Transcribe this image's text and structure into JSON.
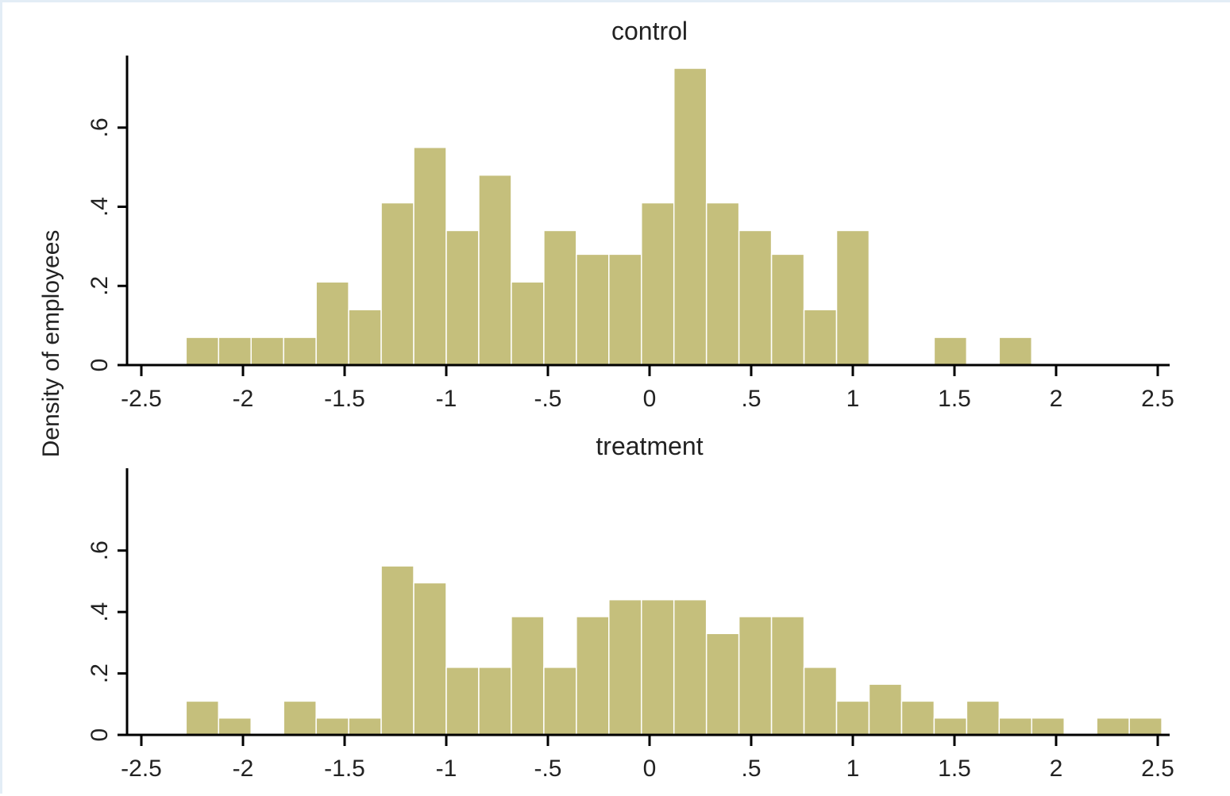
{
  "chart_data": [
    {
      "type": "bar",
      "title": "control",
      "ylabel": "Density of employees",
      "xlim": [
        -2.5,
        2.5
      ],
      "ylim": [
        0,
        0.75
      ],
      "xticks": [
        -2.5,
        -2,
        -1.5,
        -1,
        -0.5,
        0,
        0.5,
        1,
        1.5,
        2,
        2.5
      ],
      "xtick_labels": [
        "-2.5",
        "-2",
        "-1.5",
        "-1",
        "-.5",
        "0",
        ".5",
        "1",
        "1.5",
        "2",
        "2.5"
      ],
      "yticks": [
        0,
        0.2,
        0.4,
        0.6
      ],
      "ytick_labels": [
        "0",
        ".2",
        ".4",
        ".6"
      ],
      "bar_color": "#c5bf7c",
      "bar_edge_color": "#ffffff",
      "bins": [
        {
          "x0": -2.28,
          "x1": -2.12,
          "y": 0.07
        },
        {
          "x0": -2.12,
          "x1": -1.96,
          "y": 0.07
        },
        {
          "x0": -1.96,
          "x1": -1.8,
          "y": 0.07
        },
        {
          "x0": -1.8,
          "x1": -1.64,
          "y": 0.07
        },
        {
          "x0": -1.64,
          "x1": -1.48,
          "y": 0.21
        },
        {
          "x0": -1.48,
          "x1": -1.32,
          "y": 0.14
        },
        {
          "x0": -1.32,
          "x1": -1.16,
          "y": 0.41
        },
        {
          "x0": -1.16,
          "x1": -1.0,
          "y": 0.55
        },
        {
          "x0": -1.0,
          "x1": -0.84,
          "y": 0.34
        },
        {
          "x0": -0.84,
          "x1": -0.68,
          "y": 0.48
        },
        {
          "x0": -0.68,
          "x1": -0.52,
          "y": 0.21
        },
        {
          "x0": -0.52,
          "x1": -0.36,
          "y": 0.34
        },
        {
          "x0": -0.36,
          "x1": -0.2,
          "y": 0.28
        },
        {
          "x0": -0.2,
          "x1": -0.04,
          "y": 0.28
        },
        {
          "x0": -0.04,
          "x1": 0.12,
          "y": 0.41
        },
        {
          "x0": 0.12,
          "x1": 0.28,
          "y": 0.75
        },
        {
          "x0": 0.28,
          "x1": 0.44,
          "y": 0.41
        },
        {
          "x0": 0.44,
          "x1": 0.6,
          "y": 0.34
        },
        {
          "x0": 0.6,
          "x1": 0.76,
          "y": 0.28
        },
        {
          "x0": 0.76,
          "x1": 0.92,
          "y": 0.14
        },
        {
          "x0": 0.92,
          "x1": 1.08,
          "y": 0.34
        },
        {
          "x0": 1.4,
          "x1": 1.56,
          "y": 0.07
        },
        {
          "x0": 1.72,
          "x1": 1.88,
          "y": 0.07
        }
      ]
    },
    {
      "type": "bar",
      "title": "treatment",
      "ylabel": "Density of employees",
      "xlim": [
        -2.5,
        2.5
      ],
      "ylim": [
        0,
        0.7
      ],
      "xticks": [
        -2.5,
        -2,
        -1.5,
        -1,
        -0.5,
        0,
        0.5,
        1,
        1.5,
        2,
        2.5
      ],
      "xtick_labels": [
        "-2.5",
        "-2",
        "-1.5",
        "-1",
        "-.5",
        "0",
        ".5",
        "1",
        "1.5",
        "2",
        "2.5"
      ],
      "yticks": [
        0,
        0.2,
        0.4,
        0.6
      ],
      "ytick_labels": [
        "0",
        ".2",
        ".4",
        ".6"
      ],
      "bar_color": "#c5bf7c",
      "bar_edge_color": "#ffffff",
      "bins": [
        {
          "x0": -2.28,
          "x1": -2.12,
          "y": 0.11
        },
        {
          "x0": -2.12,
          "x1": -1.96,
          "y": 0.055
        },
        {
          "x0": -1.8,
          "x1": -1.64,
          "y": 0.11
        },
        {
          "x0": -1.64,
          "x1": -1.48,
          "y": 0.055
        },
        {
          "x0": -1.48,
          "x1": -1.32,
          "y": 0.055
        },
        {
          "x0": -1.32,
          "x1": -1.16,
          "y": 0.55
        },
        {
          "x0": -1.16,
          "x1": -1.0,
          "y": 0.495
        },
        {
          "x0": -1.0,
          "x1": -0.84,
          "y": 0.22
        },
        {
          "x0": -0.84,
          "x1": -0.68,
          "y": 0.22
        },
        {
          "x0": -0.68,
          "x1": -0.52,
          "y": 0.385
        },
        {
          "x0": -0.52,
          "x1": -0.36,
          "y": 0.22
        },
        {
          "x0": -0.36,
          "x1": -0.2,
          "y": 0.385
        },
        {
          "x0": -0.2,
          "x1": -0.04,
          "y": 0.44
        },
        {
          "x0": -0.04,
          "x1": 0.12,
          "y": 0.44
        },
        {
          "x0": 0.12,
          "x1": 0.28,
          "y": 0.44
        },
        {
          "x0": 0.28,
          "x1": 0.44,
          "y": 0.33
        },
        {
          "x0": 0.44,
          "x1": 0.6,
          "y": 0.385
        },
        {
          "x0": 0.6,
          "x1": 0.76,
          "y": 0.385
        },
        {
          "x0": 0.76,
          "x1": 0.92,
          "y": 0.22
        },
        {
          "x0": 0.92,
          "x1": 1.08,
          "y": 0.11
        },
        {
          "x0": 1.08,
          "x1": 1.24,
          "y": 0.165
        },
        {
          "x0": 1.24,
          "x1": 1.4,
          "y": 0.11
        },
        {
          "x0": 1.4,
          "x1": 1.56,
          "y": 0.055
        },
        {
          "x0": 1.56,
          "x1": 1.72,
          "y": 0.11
        },
        {
          "x0": 1.72,
          "x1": 1.88,
          "y": 0.055
        },
        {
          "x0": 1.88,
          "x1": 2.04,
          "y": 0.055
        },
        {
          "x0": 2.2,
          "x1": 2.36,
          "y": 0.055
        },
        {
          "x0": 2.36,
          "x1": 2.52,
          "y": 0.055
        }
      ]
    }
  ]
}
